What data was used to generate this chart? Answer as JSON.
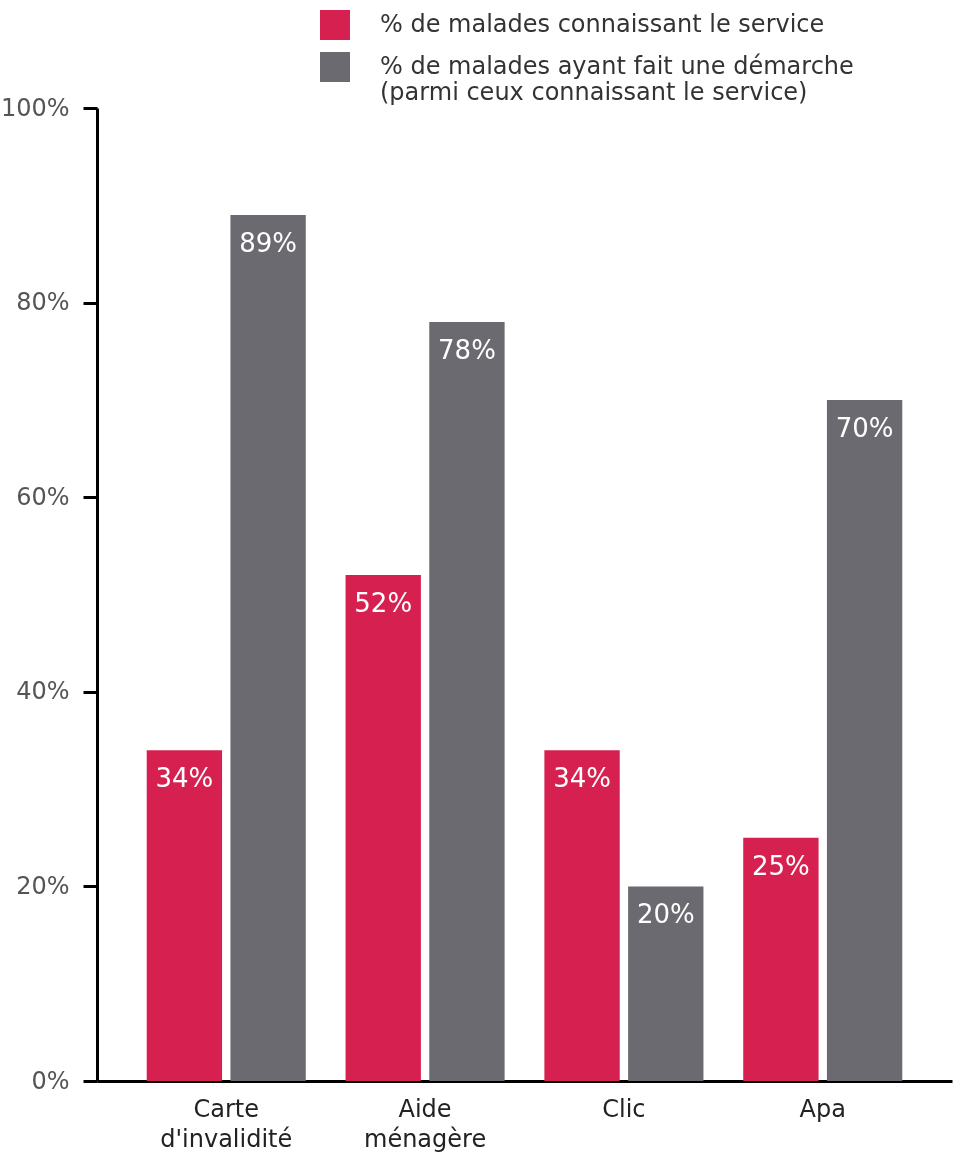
{
  "chart_data": {
    "type": "bar",
    "categories": [
      "Carte d'invalidité",
      "Aide ménagère",
      "Clic",
      "Apa"
    ],
    "series": [
      {
        "name": "% de malades connaissant le service",
        "color": "#d62050",
        "values": [
          34,
          52,
          34,
          25
        ],
        "value_labels": [
          "34%",
          "52%",
          "34%",
          "25%"
        ]
      },
      {
        "name": "% de malades ayant fait une démarche (parmi ceux connaissant le service)",
        "color": "#6a6a70",
        "values": [
          89,
          78,
          20,
          70
        ],
        "value_labels": [
          "89%",
          "78%",
          "20%",
          "70%"
        ]
      }
    ],
    "ylim": [
      0,
      100
    ],
    "yticks": [
      {
        "value": 0,
        "label": "0%"
      },
      {
        "value": 20,
        "label": "20%"
      },
      {
        "value": 40,
        "label": "40%"
      },
      {
        "value": 60,
        "label": "60%"
      },
      {
        "value": 80,
        "label": "80%"
      },
      {
        "value": 100,
        "label": "100%"
      }
    ],
    "legend": "top right",
    "grid": false
  }
}
